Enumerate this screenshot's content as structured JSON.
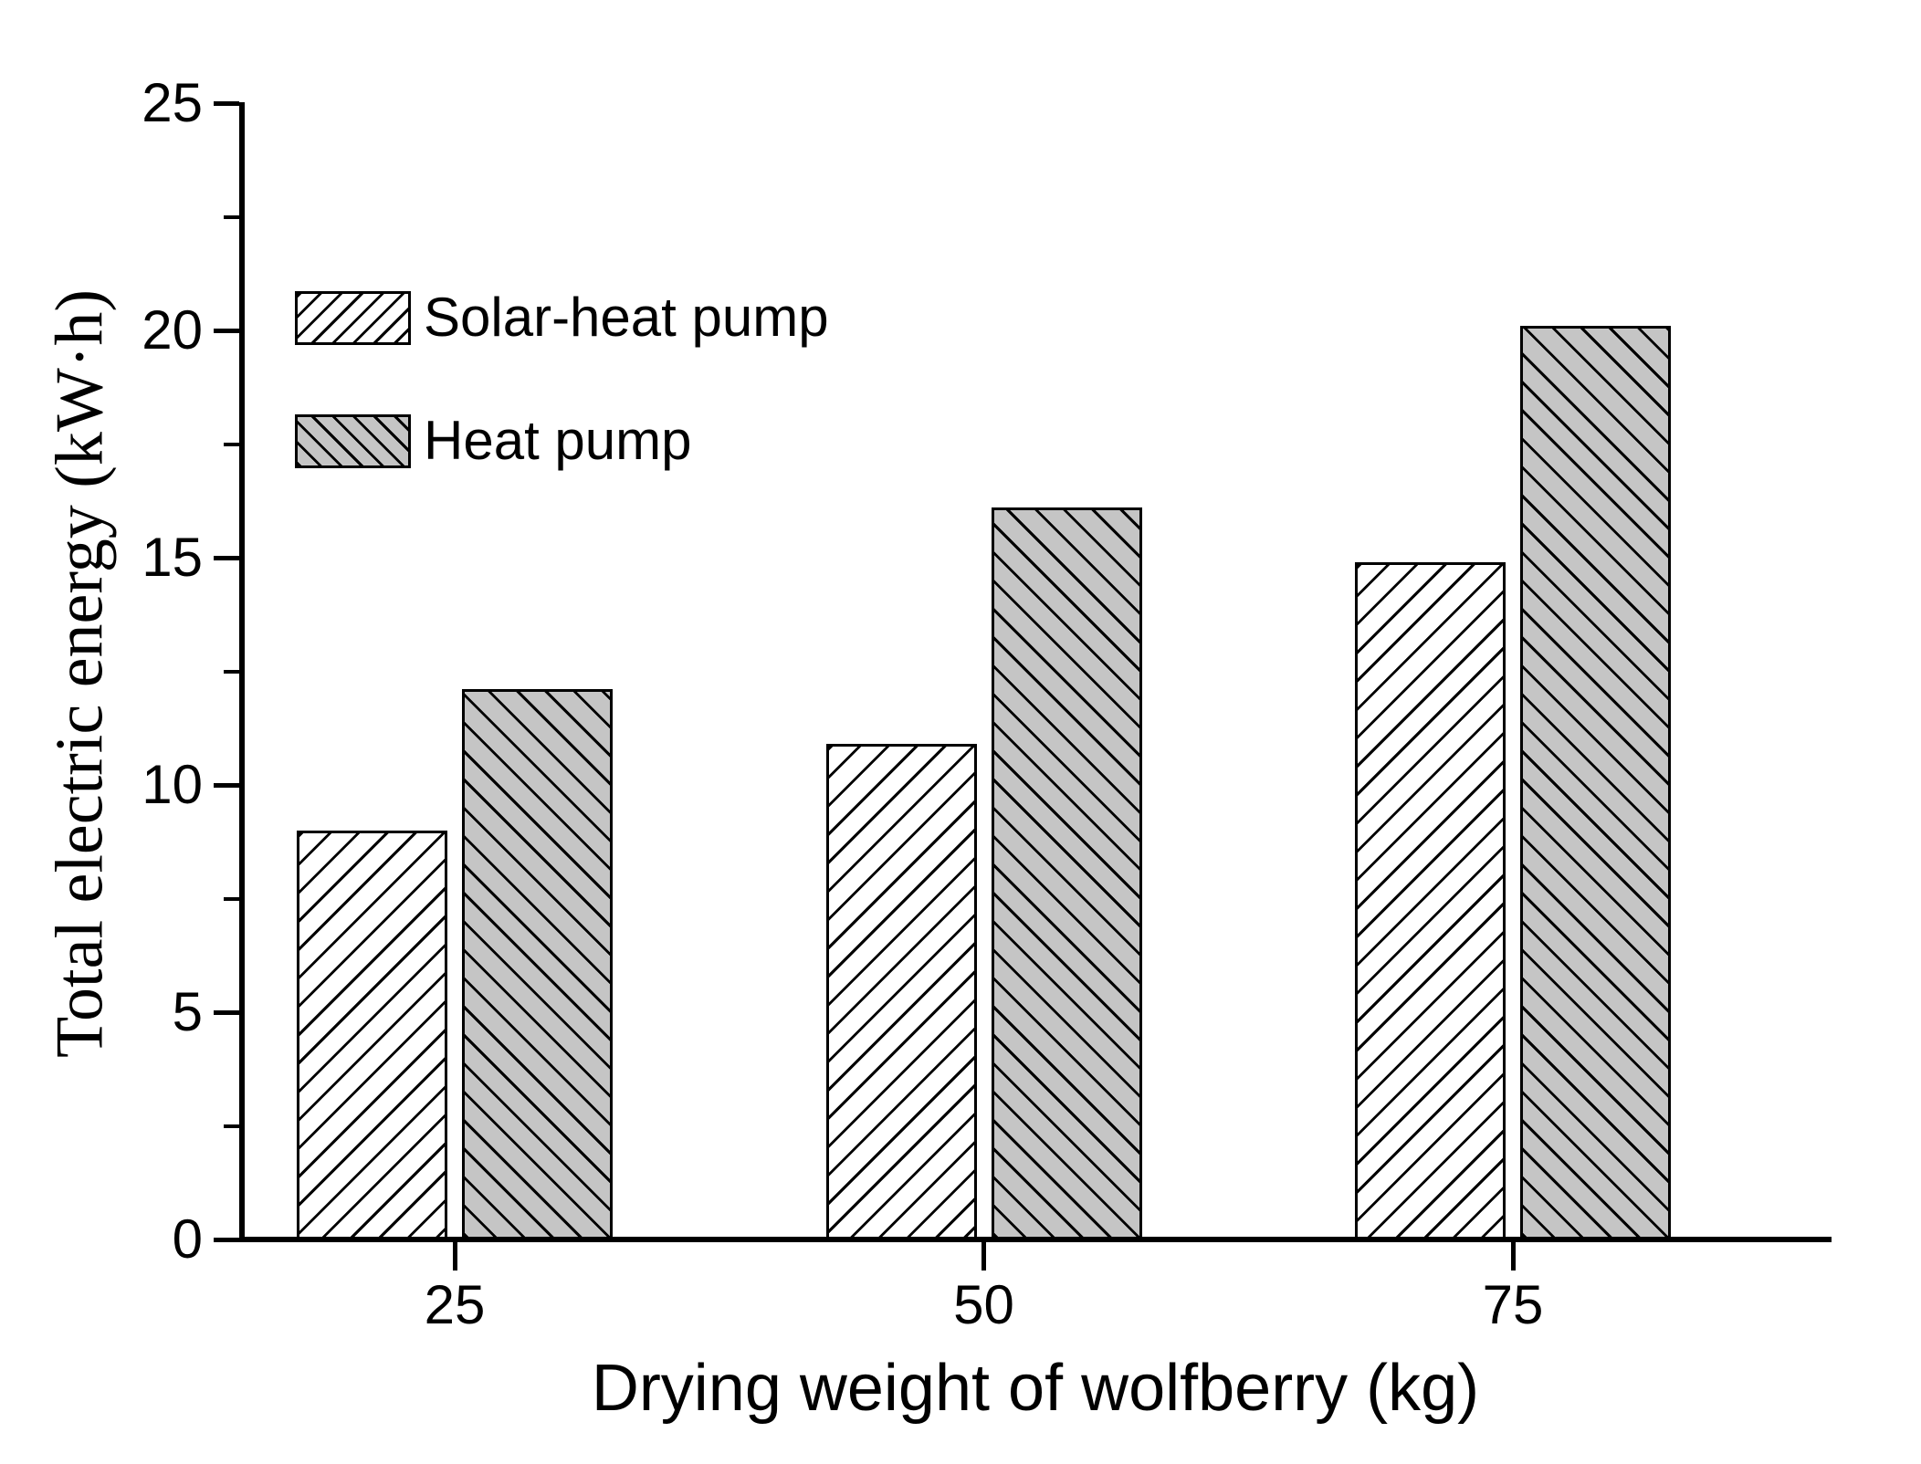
{
  "figure": {
    "background": "#ffffff",
    "axis_color": "#000000"
  },
  "chart_data": {
    "type": "bar",
    "title": "",
    "xlabel": "Drying weight of wolfberry (kg)",
    "ylabel": "Total electric energy (kW·h)",
    "categories": [
      "25",
      "50",
      "75"
    ],
    "series": [
      {
        "name": "Solar-heat pump",
        "values": [
          9.0,
          10.9,
          14.9
        ],
        "fill": "#ffffff",
        "hatch": "/"
      },
      {
        "name": "Heat pump",
        "values": [
          12.1,
          16.1,
          20.1
        ],
        "fill": "#c5c5c5",
        "hatch": "\\"
      }
    ],
    "ylim": [
      0,
      25
    ],
    "y_major_ticks": [
      0,
      5,
      10,
      15,
      20,
      25
    ],
    "y_minor_ticks": [
      2.5,
      7.5,
      12.5,
      17.5,
      22.5
    ],
    "grid": false,
    "legend_position": "upper-left-inside",
    "bar_outline_color": "#000000"
  }
}
